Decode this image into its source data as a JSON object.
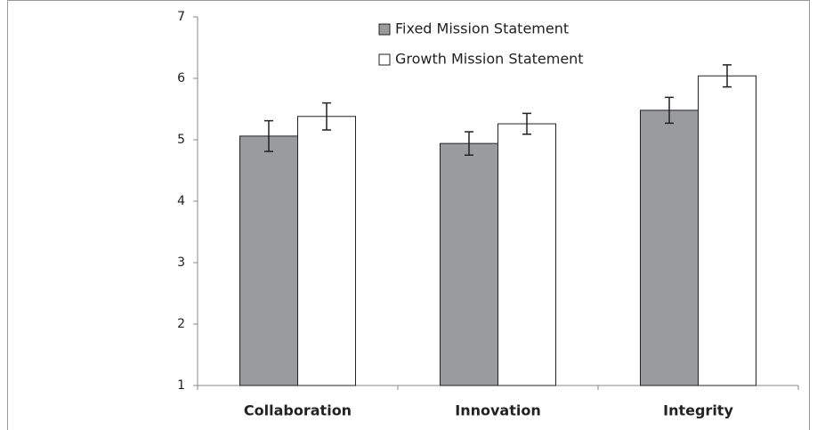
{
  "chart_data": {
    "type": "bar",
    "categories": [
      "Collaboration",
      "Innovation",
      "Integrity"
    ],
    "series": [
      {
        "name": "Fixed Mission Statement",
        "color": "#9a9b9d",
        "values": [
          5.06,
          4.94,
          5.48
        ],
        "errors": [
          0.25,
          0.19,
          0.21
        ]
      },
      {
        "name": "Growth Mission Statement",
        "color": "#ffffff",
        "values": [
          5.38,
          5.26,
          6.04
        ],
        "errors": [
          0.22,
          0.17,
          0.18
        ]
      }
    ],
    "ylim": [
      1,
      7
    ],
    "yticks": [
      1,
      2,
      3,
      4,
      5,
      6,
      7
    ],
    "grid": false,
    "legend": "top"
  }
}
